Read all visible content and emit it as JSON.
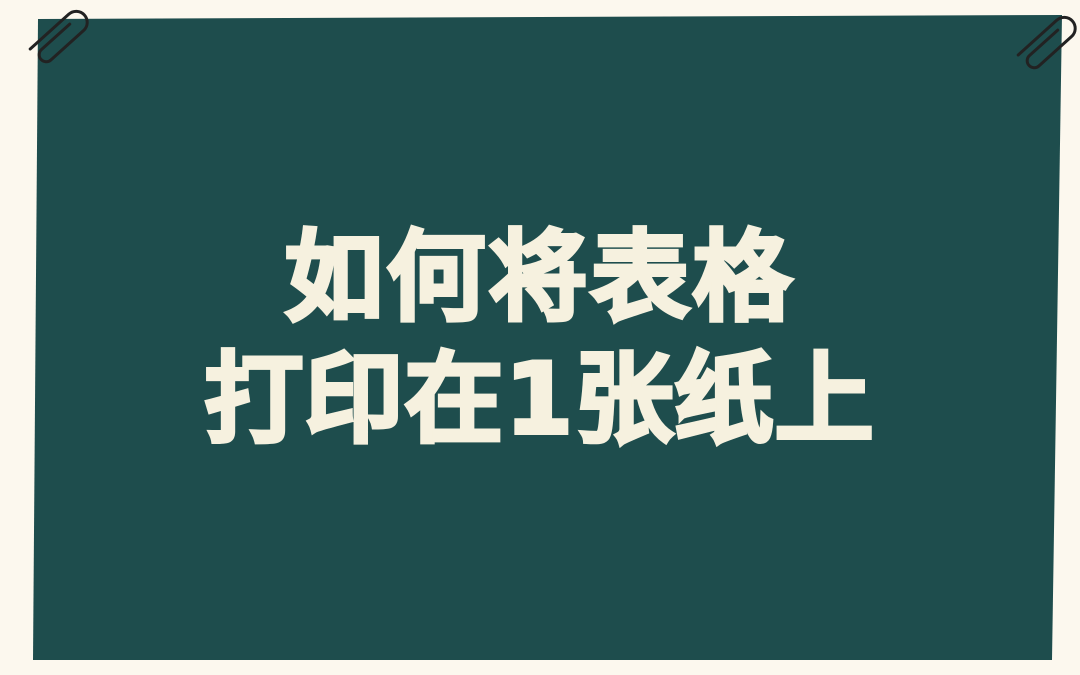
{
  "colors": {
    "page_background": "#FCF8EE",
    "board": "#1E4D4D",
    "title_text": "#F6F1DF",
    "clip_stroke": "#222222"
  },
  "title": {
    "line1": "如何将表格",
    "line2": "打印在1张纸上"
  },
  "decorations": {
    "left_clip": "paperclip-icon",
    "right_clip": "paperclip-icon"
  }
}
